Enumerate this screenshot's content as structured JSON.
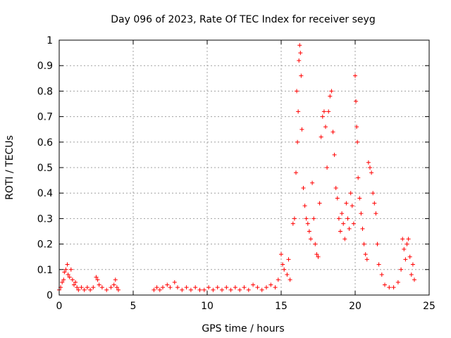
{
  "chart_data": {
    "type": "scatter",
    "title": "Day 096 of 2023, Rate Of TEC Index for receiver seyg",
    "xlabel": "GPS time / hours",
    "ylabel": "ROTI / TECUs",
    "xlim": [
      0,
      25
    ],
    "ylim": [
      0,
      1
    ],
    "xticks": [
      0,
      5,
      10,
      15,
      20,
      25
    ],
    "yticks": [
      0,
      0.1,
      0.2,
      0.3,
      0.4,
      0.5,
      0.6,
      0.7,
      0.8,
      0.9,
      1
    ],
    "grid": true,
    "marker": "+",
    "color": "#ff0000",
    "series": [
      {
        "name": "ROTI",
        "points": [
          [
            0.0,
            0.02
          ],
          [
            0.1,
            0.03
          ],
          [
            0.2,
            0.05
          ],
          [
            0.3,
            0.06
          ],
          [
            0.35,
            0.09
          ],
          [
            0.45,
            0.1
          ],
          [
            0.55,
            0.12
          ],
          [
            0.6,
            0.08
          ],
          [
            0.7,
            0.07
          ],
          [
            0.8,
            0.1
          ],
          [
            0.9,
            0.06
          ],
          [
            1.0,
            0.04
          ],
          [
            1.1,
            0.05
          ],
          [
            1.2,
            0.03
          ],
          [
            1.3,
            0.02
          ],
          [
            1.5,
            0.03
          ],
          [
            1.7,
            0.02
          ],
          [
            1.9,
            0.03
          ],
          [
            2.1,
            0.02
          ],
          [
            2.3,
            0.03
          ],
          [
            2.5,
            0.07
          ],
          [
            2.6,
            0.06
          ],
          [
            2.7,
            0.04
          ],
          [
            2.9,
            0.03
          ],
          [
            3.2,
            0.02
          ],
          [
            3.5,
            0.03
          ],
          [
            3.7,
            0.04
          ],
          [
            3.8,
            0.06
          ],
          [
            3.9,
            0.03
          ],
          [
            4.0,
            0.02
          ],
          [
            6.4,
            0.02
          ],
          [
            6.6,
            0.03
          ],
          [
            6.8,
            0.02
          ],
          [
            7.0,
            0.03
          ],
          [
            7.3,
            0.04
          ],
          [
            7.5,
            0.03
          ],
          [
            7.8,
            0.05
          ],
          [
            8.0,
            0.03
          ],
          [
            8.3,
            0.02
          ],
          [
            8.6,
            0.03
          ],
          [
            8.9,
            0.02
          ],
          [
            9.2,
            0.03
          ],
          [
            9.5,
            0.02
          ],
          [
            9.8,
            0.02
          ],
          [
            10.1,
            0.03
          ],
          [
            10.4,
            0.02
          ],
          [
            10.7,
            0.03
          ],
          [
            11.0,
            0.02
          ],
          [
            11.3,
            0.03
          ],
          [
            11.6,
            0.02
          ],
          [
            11.9,
            0.03
          ],
          [
            12.2,
            0.02
          ],
          [
            12.5,
            0.03
          ],
          [
            12.8,
            0.02
          ],
          [
            13.1,
            0.04
          ],
          [
            13.4,
            0.03
          ],
          [
            13.7,
            0.02
          ],
          [
            14.0,
            0.03
          ],
          [
            14.3,
            0.04
          ],
          [
            14.6,
            0.03
          ],
          [
            14.8,
            0.06
          ],
          [
            15.0,
            0.16
          ],
          [
            15.1,
            0.12
          ],
          [
            15.2,
            0.1
          ],
          [
            15.4,
            0.08
          ],
          [
            15.5,
            0.14
          ],
          [
            15.6,
            0.06
          ],
          [
            15.8,
            0.28
          ],
          [
            15.9,
            0.3
          ],
          [
            16.0,
            0.48
          ],
          [
            16.05,
            0.8
          ],
          [
            16.1,
            0.6
          ],
          [
            16.15,
            0.72
          ],
          [
            16.2,
            0.92
          ],
          [
            16.25,
            0.98
          ],
          [
            16.3,
            0.95
          ],
          [
            16.35,
            0.86
          ],
          [
            16.4,
            0.65
          ],
          [
            16.5,
            0.42
          ],
          [
            16.6,
            0.35
          ],
          [
            16.7,
            0.3
          ],
          [
            16.8,
            0.28
          ],
          [
            16.9,
            0.25
          ],
          [
            17.0,
            0.22
          ],
          [
            17.1,
            0.44
          ],
          [
            17.2,
            0.3
          ],
          [
            17.3,
            0.2
          ],
          [
            17.4,
            0.16
          ],
          [
            17.5,
            0.15
          ],
          [
            17.6,
            0.36
          ],
          [
            17.7,
            0.62
          ],
          [
            17.8,
            0.7
          ],
          [
            17.9,
            0.72
          ],
          [
            18.0,
            0.66
          ],
          [
            18.1,
            0.5
          ],
          [
            18.2,
            0.72
          ],
          [
            18.3,
            0.78
          ],
          [
            18.4,
            0.8
          ],
          [
            18.5,
            0.64
          ],
          [
            18.6,
            0.55
          ],
          [
            18.7,
            0.42
          ],
          [
            18.8,
            0.38
          ],
          [
            18.9,
            0.3
          ],
          [
            19.0,
            0.25
          ],
          [
            19.1,
            0.32
          ],
          [
            19.2,
            0.28
          ],
          [
            19.3,
            0.22
          ],
          [
            19.4,
            0.36
          ],
          [
            19.5,
            0.3
          ],
          [
            19.6,
            0.26
          ],
          [
            19.7,
            0.4
          ],
          [
            19.8,
            0.35
          ],
          [
            19.9,
            0.28
          ],
          [
            20.0,
            0.86
          ],
          [
            20.05,
            0.76
          ],
          [
            20.1,
            0.66
          ],
          [
            20.15,
            0.6
          ],
          [
            20.2,
            0.46
          ],
          [
            20.3,
            0.38
          ],
          [
            20.4,
            0.32
          ],
          [
            20.5,
            0.26
          ],
          [
            20.6,
            0.2
          ],
          [
            20.7,
            0.16
          ],
          [
            20.8,
            0.14
          ],
          [
            20.9,
            0.52
          ],
          [
            21.0,
            0.5
          ],
          [
            21.1,
            0.48
          ],
          [
            21.2,
            0.4
          ],
          [
            21.3,
            0.36
          ],
          [
            21.4,
            0.32
          ],
          [
            21.5,
            0.2
          ],
          [
            21.6,
            0.12
          ],
          [
            21.8,
            0.08
          ],
          [
            22.0,
            0.04
          ],
          [
            22.3,
            0.03
          ],
          [
            22.6,
            0.03
          ],
          [
            22.9,
            0.05
          ],
          [
            23.1,
            0.1
          ],
          [
            23.2,
            0.22
          ],
          [
            23.3,
            0.18
          ],
          [
            23.4,
            0.14
          ],
          [
            23.5,
            0.2
          ],
          [
            23.6,
            0.22
          ],
          [
            23.7,
            0.15
          ],
          [
            23.8,
            0.08
          ],
          [
            23.9,
            0.12
          ],
          [
            24.0,
            0.06
          ]
        ]
      }
    ]
  }
}
